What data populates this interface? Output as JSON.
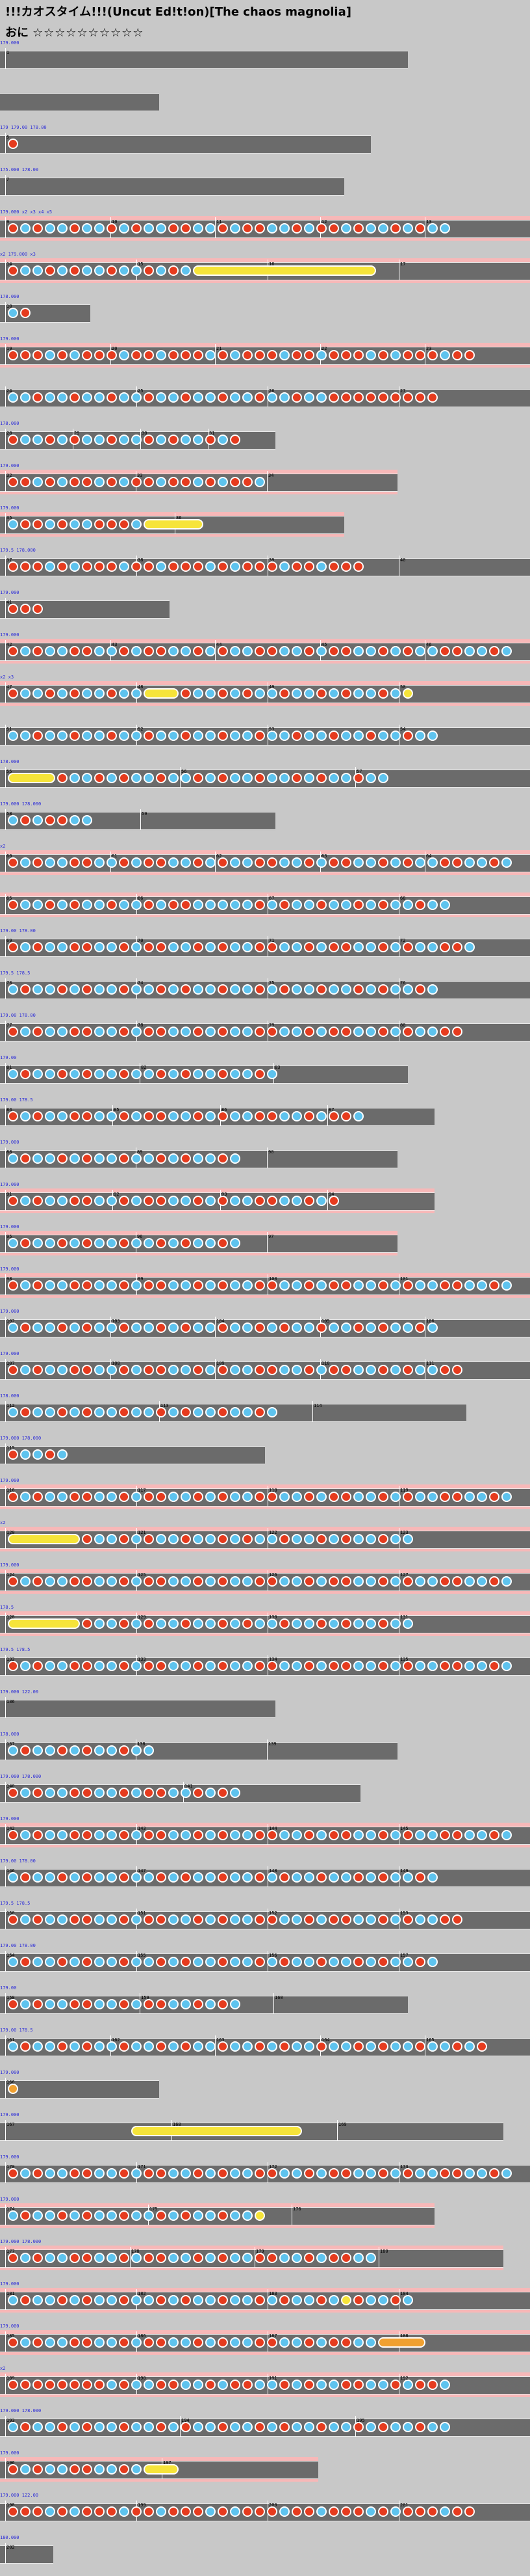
{
  "header": {
    "title": "!!!カオスタイム!!!(Uncut Ed!t!on)[The chaos magnolia]",
    "course_label": "おに",
    "stars": "☆☆☆☆☆☆☆☆☆☆"
  },
  "colors": {
    "background": "#c8c8c8",
    "lane": "#6b6b6b",
    "gogo": "#f7b8b8",
    "don": "#e63b1e",
    "ka": "#5ec3ee",
    "roll": "#f6e43a",
    "annotation": "#2a2ad8"
  },
  "icons": {
    "don_note": "red-circle",
    "ka_note": "blue-circle",
    "drumroll": "yellow-bar"
  },
  "chart_data": {
    "type": "taiko-notechart",
    "title": "!!!カオスタイム!!!(Uncut Ed!t!on)[The chaos magnolia]",
    "course": "おに",
    "difficulty_stars": 10,
    "rows": [
      {
        "lane_width": 0.77,
        "gogo": false,
        "measure_labels": [
          "1"
        ],
        "notes": "..........................",
        "annotations": [
          "179.000"
        ]
      },
      {
        "lane_width": 0.3,
        "gogo": false,
        "measure_labels": [],
        "notes": "",
        "annotations": []
      },
      {
        "lane_width": 0.7,
        "gogo": false,
        "measure_labels": [
          "5"
        ],
        "notes": "d.........................",
        "annotations": [
          "179",
          "179.00",
          "178.00"
        ]
      },
      {
        "lane_width": 0.65,
        "gogo": false,
        "measure_labels": [
          "7"
        ],
        "notes": "..........................",
        "annotations": [
          "175.000",
          "178.00"
        ]
      },
      {
        "lane_width": 1.0,
        "gogo": true,
        "measure_labels": [
          "9",
          "10",
          "11",
          "12",
          "13"
        ],
        "notes": "dkdkkdkkdkdkkddkkdkddkkdkddkdkkdkdkk",
        "annotations": [
          "179.000",
          "x2",
          "x3",
          "x4",
          "x5"
        ]
      },
      {
        "lane_width": 1.0,
        "gogo": true,
        "measure_labels": [
          "14",
          "15",
          "16",
          "17"
        ],
        "notes": "dkkdkdkkdkkdkdkRRRRRRRRRRRRRRR",
        "annotations": [
          "x2",
          "179.000",
          "x3"
        ]
      },
      {
        "lane_width": 0.17,
        "gogo": false,
        "measure_labels": [
          "18"
        ],
        "notes": "kd",
        "annotations": [
          "178.000"
        ]
      },
      {
        "lane_width": 1.0,
        "gogo": true,
        "measure_labels": [
          "19",
          "20",
          "21",
          "22",
          "23"
        ],
        "notes": "dddkdkdddkddkdddkdkdddkddkdddkdkdddkdd",
        "annotations": [
          "179.000"
        ]
      },
      {
        "lane_width": 1.0,
        "gogo": false,
        "measure_labels": [
          "24",
          "25",
          "26",
          "27"
        ],
        "notes": "kkdkkdkkdkkdkkdkkdkkdkkdkkddddddddd",
        "annotations": []
      },
      {
        "lane_width": 0.52,
        "gogo": false,
        "measure_labels": [
          "28",
          "29",
          "30",
          "31"
        ],
        "notes": "dkkdkdkkdkkdkdkkdkd",
        "annotations": [
          "178.000"
        ]
      },
      {
        "lane_width": 0.75,
        "gogo": true,
        "measure_labels": [
          "32",
          "33",
          "34"
        ],
        "notes": "ddkdkddkdkddkddkdkddk",
        "annotations": [
          "179.000"
        ]
      },
      {
        "lane_width": 0.65,
        "gogo": true,
        "measure_labels": [
          "35",
          "36"
        ],
        "notes": "kddkdkkdddkRRRRR",
        "annotations": [
          "179.000"
        ]
      },
      {
        "lane_width": 1.0,
        "gogo": false,
        "measure_labels": [
          "37",
          "38",
          "39",
          "40"
        ],
        "notes": "dddkdkdddkddkdddkdkdddkddkddd",
        "annotations": [
          "179.5",
          "178.000"
        ]
      },
      {
        "lane_width": 0.32,
        "gogo": false,
        "measure_labels": [
          "41"
        ],
        "notes": "ddd",
        "annotations": [
          "179.000"
        ]
      },
      {
        "lane_width": 1.0,
        "gogo": true,
        "measure_labels": [
          "42",
          "43",
          "44",
          "45",
          "46"
        ],
        "notes": "dkdkkddkkdkddkkdkdkkddkkdkddkkdkdkkddkkdkd",
        "annotations": [
          "179.000"
        ]
      },
      {
        "lane_width": 1.0,
        "gogo": true,
        "measure_labels": [
          "47",
          "48",
          "49",
          "50"
        ],
        "notes": "dkkdkdkkdkkRRRdkkdkdkkdkkdkdkkdkR",
        "annotations": [
          "x2",
          "x3"
        ]
      },
      {
        "lane_width": 1.0,
        "gogo": false,
        "measure_labels": [
          "51",
          "52",
          "53",
          "54"
        ],
        "notes": "kkdkkdkkdkkdkkdkkdkkdkkdkkdkkdkkdkk",
        "annotations": []
      },
      {
        "lane_width": 1.0,
        "gogo": false,
        "measure_labels": [
          "55",
          "56",
          "57"
        ],
        "notes": "RRRRdkkdkdkkdkkdkdkkdkkdkdkkdkk",
        "annotations": [
          "178.000"
        ]
      },
      {
        "lane_width": 0.52,
        "gogo": false,
        "measure_labels": [
          "58",
          "59"
        ],
        "notes": "kdkddkk",
        "annotations": [
          "179.000",
          "178.000"
        ]
      },
      {
        "lane_width": 1.0,
        "gogo": true,
        "measure_labels": [
          "60",
          "61",
          "62",
          "63",
          "64"
        ],
        "notes": "dkdkkddkkdkddkkdkdkkddkkdkddkkdkdkkddkkdk",
        "annotations": [
          "x2"
        ]
      },
      {
        "lane_width": 1.0,
        "gogo": true,
        "measure_labels": [
          "65",
          "66",
          "67",
          "68"
        ],
        "notes": "dkkdkdkkdkkdkddkkkkkdkdkkdkkdkdkkdkk",
        "annotations": []
      },
      {
        "lane_width": 1.0,
        "gogo": false,
        "measure_labels": [
          "69",
          "70",
          "71",
          "72"
        ],
        "notes": "dkdkkddkkdkddkkdkdkkddkkdkddkkdkdkkddk",
        "annotations": [
          "179.00",
          "178.00"
        ]
      },
      {
        "lane_width": 1.0,
        "gogo": false,
        "measure_labels": [
          "73",
          "74",
          "75",
          "76"
        ],
        "notes": "kdkkdkdkkdkkdkdkkdkkdkdkkdkkdkdkkdk",
        "annotations": [
          "179.5",
          "178.5"
        ]
      },
      {
        "lane_width": 1.0,
        "gogo": false,
        "measure_labels": [
          "77",
          "78",
          "79",
          "80"
        ],
        "notes": "dkdkkddkkdkddkkdkdkkddkkdkddkkdkdkkdd",
        "annotations": [
          "179.00",
          "178.00"
        ]
      },
      {
        "lane_width": 0.77,
        "gogo": false,
        "measure_labels": [
          "81",
          "82",
          "83"
        ],
        "notes": "kdkkdkdkkdkkdkdkkdkkdk",
        "annotations": [
          "179.00"
        ]
      },
      {
        "lane_width": 0.82,
        "gogo": false,
        "measure_labels": [
          "84",
          "85",
          "86",
          "87"
        ],
        "notes": "dkdkkddkkdkddkkdkdkkddkkdkddk",
        "annotations": [
          "179.00",
          "178.5"
        ]
      },
      {
        "lane_width": 0.75,
        "gogo": false,
        "measure_labels": [
          "88",
          "89",
          "90"
        ],
        "notes": "kdkkdkdkkdkkdkdkkdk",
        "annotations": [
          "179.000"
        ]
      },
      {
        "lane_width": 0.82,
        "gogo": true,
        "measure_labels": [
          "91",
          "92",
          "93",
          "94"
        ],
        "notes": "dkdkkddkkdkddkkdkdkkddkkdkd",
        "annotations": [
          "179.000"
        ]
      },
      {
        "lane_width": 0.75,
        "gogo": true,
        "measure_labels": [
          "95",
          "96",
          "97"
        ],
        "notes": "kdkkdkdkkdkkdkdkkdk",
        "annotations": [
          "179.000"
        ]
      },
      {
        "lane_width": 1.0,
        "gogo": true,
        "measure_labels": [
          "98",
          "99",
          "100",
          "101"
        ],
        "notes": "dkdkkddkkdkddkkdkdkkddkkdkddkkdkdkkddkkdk",
        "annotations": [
          "179.000"
        ]
      },
      {
        "lane_width": 1.0,
        "gogo": false,
        "measure_labels": [
          "102",
          "103",
          "104",
          "105",
          "106"
        ],
        "notes": "kdkkdkdkkdkkdkdkkdkkdkdkkdkkdkdkkdk",
        "annotations": [
          "179.000"
        ]
      },
      {
        "lane_width": 1.0,
        "gogo": false,
        "measure_labels": [
          "107",
          "108",
          "109",
          "110",
          "111"
        ],
        "notes": "dkdkkddkkdkddkkdkdkkddkkdkddkkdkdkkdd",
        "annotations": [
          "179.000"
        ]
      },
      {
        "lane_width": 0.88,
        "gogo": false,
        "measure_labels": [
          "112",
          "113",
          "114"
        ],
        "notes": "kdkkdkdkkdkkdkdkkdkkdk",
        "annotations": [
          "178.000"
        ]
      },
      {
        "lane_width": 0.5,
        "gogo": false,
        "measure_labels": [
          "115"
        ],
        "notes": "dkkdk",
        "annotations": [
          "179.000",
          "178.000"
        ]
      },
      {
        "lane_width": 1.0,
        "gogo": true,
        "measure_labels": [
          "116",
          "117",
          "118",
          "119"
        ],
        "notes": "dkdkkddkkdkddkkdkdkkddkkdkddkkdkdkkddkkdk",
        "annotations": [
          "179.000"
        ]
      },
      {
        "lane_width": 1.0,
        "gogo": true,
        "measure_labels": [
          "120",
          "121",
          "122",
          "123"
        ],
        "notes": "RRRRRRdkkdkdkkdkkdkdkkdkkdkdkkdkk",
        "annotations": [
          "x2"
        ]
      },
      {
        "lane_width": 1.0,
        "gogo": true,
        "measure_labels": [
          "124",
          "125",
          "126",
          "127"
        ],
        "notes": "dkdkkddkkdkddkkdkdkkddkkdkddkkdkdkkddkkdk",
        "annotations": [
          "179.000"
        ]
      },
      {
        "lane_width": 1.0,
        "gogo": true,
        "measure_labels": [
          "128",
          "129",
          "130",
          "131"
        ],
        "notes": "RRRRRRdkkdkdkkdkkdkdkkdkkdkdkkdkk",
        "annotations": [
          "178.5"
        ]
      },
      {
        "lane_width": 1.0,
        "gogo": false,
        "measure_labels": [
          "132",
          "133",
          "134",
          "135"
        ],
        "notes": "dkdkkddkkdkddkkdkdkkddkkdkddkkdkdkkddkkdk",
        "annotations": [
          "179.5",
          "178.5"
        ]
      },
      {
        "lane_width": 0.52,
        "gogo": false,
        "measure_labels": [
          "136"
        ],
        "notes": "",
        "annotations": [
          "179.000",
          "122.00"
        ]
      },
      {
        "lane_width": 0.75,
        "gogo": false,
        "measure_labels": [
          "137",
          "138",
          "139"
        ],
        "notes": "kdkkdkdkkdkk",
        "annotations": [
          "178.000"
        ]
      },
      {
        "lane_width": 0.68,
        "gogo": false,
        "measure_labels": [
          "140",
          "141"
        ],
        "notes": "dkdkkddkkdkddkkdkdk",
        "annotations": [
          "179.000",
          "178.000"
        ]
      },
      {
        "lane_width": 1.0,
        "gogo": true,
        "measure_labels": [
          "142",
          "143",
          "144",
          "145"
        ],
        "notes": "dkdkkddkkdkddkkdkdkkddkkdkddkkdkdkkddkkdk",
        "annotations": [
          "179.000"
        ]
      },
      {
        "lane_width": 1.0,
        "gogo": false,
        "measure_labels": [
          "146",
          "147",
          "148",
          "149"
        ],
        "notes": "kdkkdkdkkdkkdkdkkdkkdkdkkdkkdkdkkdk",
        "annotations": [
          "179.00",
          "178.00"
        ]
      },
      {
        "lane_width": 1.0,
        "gogo": false,
        "measure_labels": [
          "150",
          "151",
          "152",
          "153"
        ],
        "notes": "dkdkkddkkdkddkkdkdkkddkkdkddkkdkdkkdd",
        "annotations": [
          "179.5",
          "178.5"
        ]
      },
      {
        "lane_width": 1.0,
        "gogo": false,
        "measure_labels": [
          "154",
          "155",
          "156",
          "157"
        ],
        "notes": "kdkkdkdkkdkkdkdkkdkkdkdkkdkkdkdkkdk",
        "annotations": [
          "179.00",
          "178.00"
        ]
      },
      {
        "lane_width": 0.77,
        "gogo": false,
        "measure_labels": [
          "158",
          "159",
          "160"
        ],
        "notes": "dkdkkddkkdkddkkdkdk",
        "annotations": [
          "179.00"
        ]
      },
      {
        "lane_width": 1.0,
        "gogo": false,
        "measure_labels": [
          "161",
          "162",
          "163",
          "164",
          "165"
        ],
        "notes": "kdkkdkdkkdkkdkdkkdkkdkdkkdkkdkdkkdkkdkd",
        "annotations": [
          "179.00",
          "178.5"
        ]
      },
      {
        "lane_width": 0.3,
        "gogo": false,
        "measure_labels": [
          "166"
        ],
        "notes": "B",
        "annotations": [
          "179.000"
        ]
      },
      {
        "lane_width": 0.95,
        "gogo": false,
        "measure_labels": [
          "167",
          "168",
          "169"
        ],
        "notes": "..........RRRRRRRRRRRRRR",
        "annotations": [
          "179.000"
        ]
      },
      {
        "lane_width": 1.0,
        "gogo": false,
        "measure_labels": [
          "170",
          "171",
          "172",
          "173"
        ],
        "notes": "dkdkkddkkdkddkkdkdkkddkkdkddkkdkdkkddkkdk",
        "annotations": [
          "179.000"
        ]
      },
      {
        "lane_width": 0.82,
        "gogo": true,
        "measure_labels": [
          "174",
          "175",
          "176"
        ],
        "notes": "kdkkdkdkkdkkdkdkkdkkR",
        "annotations": [
          "179.000"
        ]
      },
      {
        "lane_width": 0.95,
        "gogo": true,
        "measure_labels": [
          "177",
          "178",
          "179",
          "180"
        ],
        "notes": "dkdkkddkkdkddkkdkdkkddkkdkddkk",
        "annotations": [
          "179.000",
          "178.000"
        ]
      },
      {
        "lane_width": 1.0,
        "gogo": true,
        "measure_labels": [
          "181",
          "182",
          "183",
          "184"
        ],
        "notes": "kdkkdkdkkdkkdkdkkdkkdkdkkdkRdkkdk",
        "annotations": [
          "179.000"
        ]
      },
      {
        "lane_width": 1.0,
        "gogo": true,
        "measure_labels": [
          "185",
          "186",
          "187",
          "188"
        ],
        "notes": "dkdkkddkkdkddkkdkdkkddkkdkddkkBBBB",
        "annotations": [
          "179.000"
        ]
      },
      {
        "lane_width": 1.0,
        "gogo": true,
        "measure_labels": [
          "189",
          "190",
          "191",
          "192"
        ],
        "notes": "ddddddddkdkkddkkdkddkkdkdkkddkkdkddk",
        "annotations": [
          "x2"
        ]
      },
      {
        "lane_width": 1.0,
        "gogo": false,
        "measure_labels": [
          "193",
          "194",
          "195"
        ],
        "notes": "kdkkdkdkkdkkdkdkkdkkdkdkkdkkdkdkkdkk",
        "annotations": [
          "179.000",
          "178.000"
        ]
      },
      {
        "lane_width": 0.6,
        "gogo": true,
        "measure_labels": [
          "196",
          "197"
        ],
        "notes": "dkdkkddkkdkRRR",
        "annotations": [
          "179.000"
        ]
      },
      {
        "lane_width": 1.0,
        "gogo": false,
        "measure_labels": [
          "198",
          "199",
          "200",
          "201"
        ],
        "notes": "dddkdkdddkddkdddkdkdddkddkdddkdkdddkdd",
        "annotations": [
          "179.000",
          "122.00"
        ]
      },
      {
        "lane_width": 0.1,
        "gogo": false,
        "measure_labels": [
          "202"
        ],
        "notes": "",
        "annotations": [
          "180.000"
        ]
      }
    ]
  }
}
